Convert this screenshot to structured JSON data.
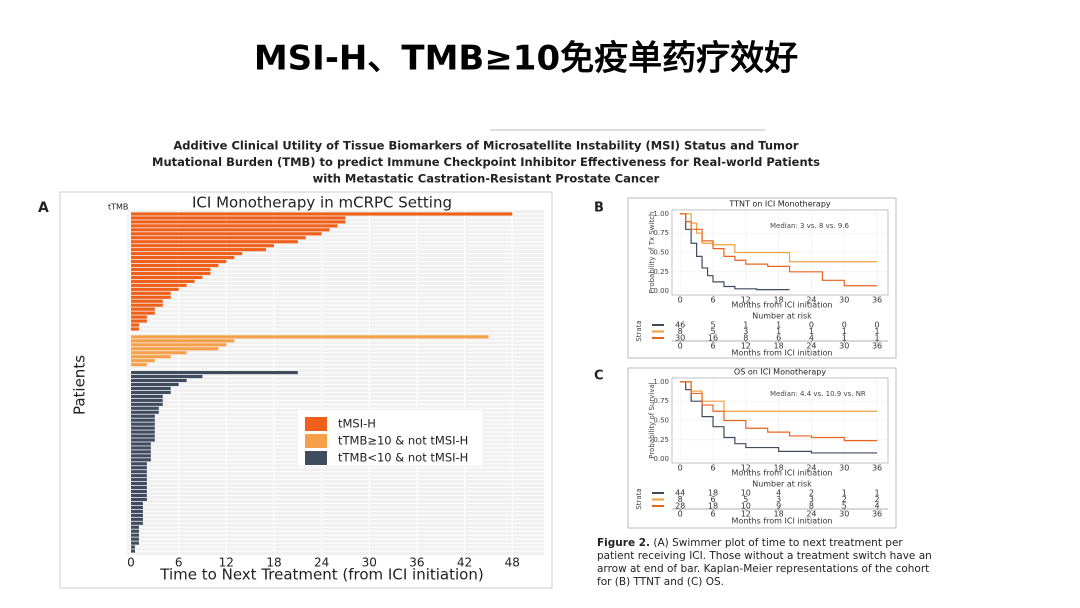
{
  "slide": {
    "title": "MSI-H、TMB≥10免疫单药疗效好"
  },
  "paper": {
    "title_lines": [
      "Additive Clinical Utility of Tissue Biomarkers of Microsatellite Instability (MSI) Status and Tumor",
      "Mutational Burden (TMB) to predict Immune Checkpoint Inhibitor Effectiveness for Real-world Patients",
      "with Metastatic Castration-Resistant Prostate Cancer"
    ]
  },
  "chart_data": [
    {
      "type": "bar",
      "orientation": "horizontal",
      "panel": "A",
      "title": "ICI Monotherapy in mCRPC Setting",
      "y_header": "tTMB",
      "ylabel": "Patients",
      "xlabel": "Time to Next Treatment (from ICI initiation)",
      "xlim": [
        0,
        52
      ],
      "xticks": [
        0,
        6,
        12,
        18,
        24,
        30,
        36,
        42,
        48
      ],
      "grid": true,
      "legend": "center right",
      "series": [
        {
          "name": "tMSI-H",
          "color": "#f0601a",
          "values": [
            48,
            27,
            27,
            26,
            25,
            24,
            22,
            21,
            18,
            17,
            14,
            13,
            12,
            11,
            10,
            10,
            9,
            8,
            7,
            6,
            5,
            5,
            4,
            4,
            3,
            3,
            2,
            2,
            1,
            1
          ]
        },
        {
          "name": "tTMB≥10 & not tMSI-H",
          "color": "#f7a04a",
          "values": [
            45,
            13,
            12,
            11,
            7,
            5,
            3,
            2
          ]
        },
        {
          "name": "tTMB<10 & not tMSI-H",
          "color": "#3f4b5e",
          "values": [
            21,
            9,
            7,
            6,
            5,
            5,
            4,
            4,
            4,
            3.5,
            3.5,
            3,
            3,
            3,
            3,
            3,
            3,
            3,
            2.5,
            2.5,
            2.5,
            2.5,
            2.5,
            2,
            2,
            2,
            2,
            2,
            2,
            2,
            2,
            2,
            2,
            1.5,
            1.5,
            1.5,
            1.5,
            1.5,
            1.5,
            1,
            1,
            1,
            1,
            1,
            0.5,
            0.5
          ]
        }
      ]
    },
    {
      "type": "step",
      "panel": "B",
      "title": "TTNT on ICI Monotherapy",
      "annotation": "Median: 3 vs. 8 vs. 9.6",
      "ylabel": "Probability of Tx Switch",
      "xlabel": "Months from ICI initiation",
      "xlim": [
        -1.5,
        38
      ],
      "ylim": [
        -0.05,
        1.05
      ],
      "xticks": [
        0,
        6,
        12,
        18,
        24,
        30,
        36
      ],
      "yticks": [
        {
          "value": 0,
          "label": "0.00"
        },
        {
          "value": 0.25,
          "label": "0.25"
        },
        {
          "value": 0.5,
          "label": "0.50"
        },
        {
          "value": 0.75,
          "label": "0.75"
        },
        {
          "value": 1,
          "label": "1.00"
        }
      ],
      "series": [
        {
          "color": "#3f4b5e",
          "x": [
            0,
            1,
            2,
            3,
            4,
            5,
            6,
            8,
            10,
            14,
            20
          ],
          "values": [
            1,
            0.8,
            0.62,
            0.45,
            0.3,
            0.2,
            0.12,
            0.06,
            0.03,
            0.02,
            0.02
          ]
        },
        {
          "color": "#f0a040",
          "x": [
            0,
            2,
            3,
            4,
            6,
            10,
            12,
            20,
            36
          ],
          "values": [
            1,
            0.88,
            0.75,
            0.62,
            0.6,
            0.5,
            0.5,
            0.38,
            0.38
          ]
        },
        {
          "color": "#e8641e",
          "x": [
            0,
            1,
            2,
            4,
            6,
            8,
            10,
            12,
            16,
            20,
            26,
            30,
            36
          ],
          "values": [
            1,
            0.9,
            0.8,
            0.65,
            0.55,
            0.45,
            0.4,
            0.35,
            0.32,
            0.25,
            0.14,
            0.07,
            0.07
          ]
        }
      ],
      "risk_table": {
        "title": "Number at risk",
        "label": "Strata",
        "rows": [
          [
            46,
            5,
            1,
            1,
            0,
            0,
            0
          ],
          [
            8,
            5,
            3,
            1,
            1,
            1,
            1
          ],
          [
            30,
            16,
            8,
            6,
            4,
            1,
            1
          ]
        ]
      }
    },
    {
      "type": "step",
      "panel": "C",
      "title": "OS on ICI Monotherapy",
      "annotation": "Median: 4.4 vs. 10.9 vs. NR",
      "ylabel": "Probability of Survival",
      "xlabel": "Months from ICI initiation",
      "xlim": [
        -1.5,
        38
      ],
      "ylim": [
        -0.05,
        1.05
      ],
      "xticks": [
        0,
        6,
        12,
        18,
        24,
        30,
        36
      ],
      "yticks": [
        {
          "value": 0,
          "label": "0.00"
        },
        {
          "value": 0.25,
          "label": "0.25"
        },
        {
          "value": 0.5,
          "label": "0.50"
        },
        {
          "value": 0.75,
          "label": "0.75"
        },
        {
          "value": 1,
          "label": "1.00"
        }
      ],
      "series": [
        {
          "color": "#3f4b5e",
          "x": [
            0,
            1,
            2,
            4,
            6,
            8,
            10,
            12,
            18,
            24,
            36
          ],
          "values": [
            1,
            0.9,
            0.75,
            0.55,
            0.42,
            0.28,
            0.2,
            0.15,
            0.1,
            0.08,
            0.08
          ]
        },
        {
          "color": "#f0a040",
          "x": [
            0,
            2,
            4,
            6,
            8,
            14,
            36
          ],
          "values": [
            1,
            0.88,
            0.75,
            0.75,
            0.62,
            0.62,
            0.62
          ]
        },
        {
          "color": "#e8641e",
          "x": [
            0,
            2,
            4,
            6,
            8,
            12,
            16,
            20,
            24,
            30,
            36
          ],
          "values": [
            1,
            0.85,
            0.7,
            0.62,
            0.5,
            0.4,
            0.35,
            0.3,
            0.28,
            0.24,
            0.24
          ]
        }
      ],
      "risk_table": {
        "title": "Number at risk",
        "label": "Strata",
        "rows": [
          [
            44,
            18,
            10,
            4,
            2,
            1,
            1
          ],
          [
            8,
            6,
            5,
            3,
            3,
            2,
            2
          ],
          [
            28,
            18,
            10,
            9,
            8,
            5,
            4
          ]
        ]
      }
    }
  ],
  "caption": {
    "label": "Figure 2.",
    "lines": [
      "(A) Swimmer plot of time to next treatment per",
      "patient receiving ICI. Those without a treatment switch have an",
      "arrow at end of bar. Kaplan-Meier representations of the cohort",
      "for (B) TTNT and (C) OS."
    ]
  }
}
